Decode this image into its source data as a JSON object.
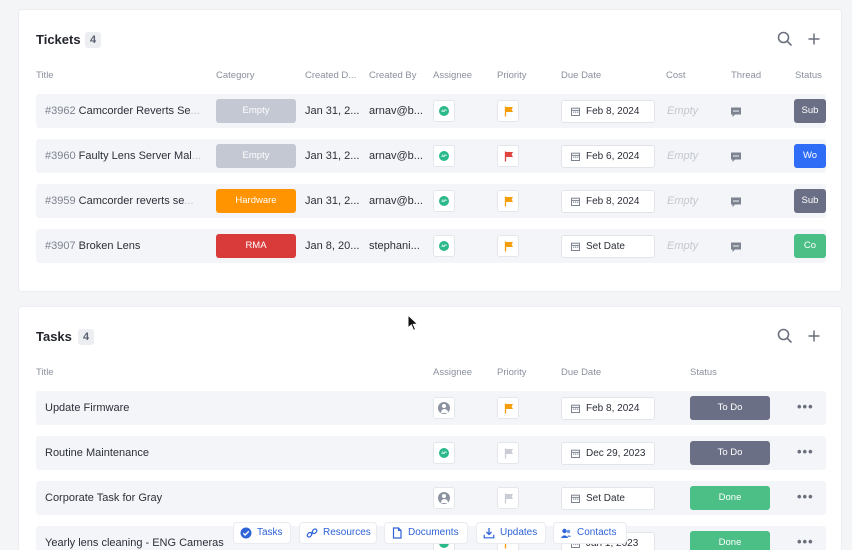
{
  "tickets": {
    "title": "Tickets",
    "count": "4",
    "columns": [
      "Title",
      "Category",
      "Created D...",
      "Created By",
      "Assignee",
      "Priority",
      "Due Date",
      "Cost",
      "Thread",
      "Status"
    ],
    "rows": [
      {
        "id": "#3962",
        "title": "Camcorder Reverts Se",
        "title_fade": "...",
        "category": "Empty",
        "category_color": "#c4c8d3",
        "created_date": "Jan 31, 2...",
        "created_by": "arnav@b...",
        "assignee": "AP",
        "priority_color": "#f59e0b",
        "due_date": "Feb 8, 2024",
        "cost": "Empty",
        "status": "Sub",
        "status_color": "#6b6f86"
      },
      {
        "id": "#3960",
        "title": "Faulty Lens Server Mal",
        "title_fade": "...",
        "category": "Empty",
        "category_color": "#c4c8d3",
        "created_date": "Jan 31, 2...",
        "created_by": "arnav@b...",
        "assignee": "AP",
        "priority_color": "#e0443e",
        "due_date": "Feb 6, 2024",
        "cost": "Empty",
        "status": "Wo",
        "status_color": "#2f6df6"
      },
      {
        "id": "#3959",
        "title": "Camcorder reverts se",
        "title_fade": "...",
        "category": "Hardware",
        "category_color": "#ff9400",
        "created_date": "Jan 31, 2...",
        "created_by": "arnav@b...",
        "assignee": "AP",
        "priority_color": "#f59e0b",
        "due_date": "Feb 8, 2024",
        "cost": "Empty",
        "status": "Sub",
        "status_color": "#6b6f86"
      },
      {
        "id": "#3907",
        "title": "Broken Lens",
        "title_fade": "",
        "category": "RMA",
        "category_color": "#d93b3b",
        "created_date": "Jan 8, 20...",
        "created_by": "stephani...",
        "assignee": "AP",
        "priority_color": "#f59e0b",
        "due_date": "Set Date",
        "cost": "Empty",
        "status": "Co",
        "status_color": "#4cbf86"
      }
    ]
  },
  "tasks": {
    "title": "Tasks",
    "count": "4",
    "columns": [
      "Title",
      "Assignee",
      "Priority",
      "Due Date",
      "Status"
    ],
    "rows": [
      {
        "title": "Update Firmware",
        "assignee": "none",
        "priority_color": "#f59e0b",
        "due_date": "Feb 8, 2024",
        "status": "To Do",
        "status_color": "#6b6f86"
      },
      {
        "title": "Routine Maintenance",
        "assignee": "AP",
        "priority_color": "#c9ccd4",
        "due_date": "Dec 29, 2023",
        "status": "To Do",
        "status_color": "#6b6f86"
      },
      {
        "title": "Corporate Task for Gray",
        "assignee": "none",
        "priority_color": "#c9ccd4",
        "due_date": "Set Date",
        "status": "Done",
        "status_color": "#4cbf86"
      },
      {
        "title": "Yearly lens cleaning - ENG Cameras",
        "assignee": "AP",
        "priority_color": "#f59e0b",
        "due_date": "Jan 1, 2023",
        "status": "Done",
        "status_color": "#4cbf86"
      }
    ]
  },
  "bottom_nav": [
    {
      "label": "Tasks",
      "icon": "check-circle-icon"
    },
    {
      "label": "Resources",
      "icon": "link-icon"
    },
    {
      "label": "Documents",
      "icon": "document-icon"
    },
    {
      "label": "Updates",
      "icon": "download-icon"
    },
    {
      "label": "Contacts",
      "icon": "contacts-icon"
    }
  ],
  "colors": {
    "accent": "#2f63d8",
    "row_bg": "#f4f5f8"
  }
}
